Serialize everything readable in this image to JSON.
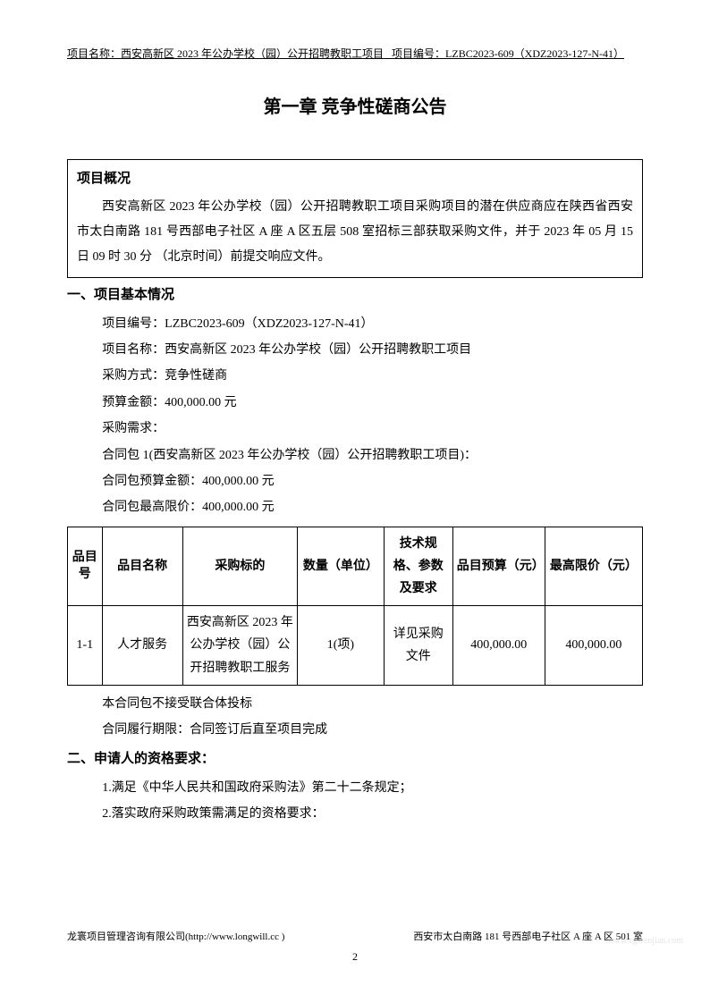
{
  "header": {
    "project_name_label": "项目名称：",
    "project_name": "西安高新区 2023 年公办学校（园）公开招聘教职工项目",
    "project_code_label": "项目编号：",
    "project_code": "LZBC2023-609（XDZ2023-127-N-41）"
  },
  "chapter_title": "第一章 竞争性磋商公告",
  "overview": {
    "title": "项目概况",
    "body": "西安高新区 2023 年公办学校（园）公开招聘教职工项目采购项目的潜在供应商应在陕西省西安市太白南路 181 号西部电子社区 A 座 A 区五层 508 室招标三部获取采购文件，并于 2023 年 05 月 15 日 09 时 30 分 （北京时间）前提交响应文件。"
  },
  "section1": {
    "title": "一、项目基本情况",
    "project_code_line": "项目编号：LZBC2023-609（XDZ2023-127-N-41）",
    "project_name_line": "项目名称：西安高新区 2023 年公办学校（园）公开招聘教职工项目",
    "method_line": "采购方式：竞争性磋商",
    "budget_line": "预算金额：400,000.00 元",
    "demand_line": "采购需求：",
    "package_line": "合同包 1(西安高新区 2023 年公办学校（园）公开招聘教职工项目)：",
    "package_budget_line": "合同包预算金额：400,000.00 元",
    "package_max_line": "合同包最高限价：400,000.00 元",
    "no_consortium": "本合同包不接受联合体投标",
    "duration": "合同履行期限：合同签订后直至项目完成"
  },
  "table": {
    "headers": {
      "num": "品目号",
      "name": "品目名称",
      "target": "采购标的",
      "qty": "数量（单位）",
      "tech": "技术规格、参数及要求",
      "budget": "品目预算（元）",
      "max": "最高限价（元）"
    },
    "row": {
      "num": "1-1",
      "name": "人才服务",
      "target": "西安高新区 2023 年公办学校（园）公开招聘教职工服务",
      "qty": "1(项)",
      "tech": "详见采购文件",
      "budget": "400,000.00",
      "max": "400,000.00"
    }
  },
  "section2": {
    "title": "二、申请人的资格要求：",
    "req1": "1.满足《中华人民共和国政府采购法》第二十二条规定；",
    "req2": "2.落实政府采购政策需满足的资格要求："
  },
  "footer": {
    "left": "龙寰项目管理咨询有限公司(http://www.longwill.cc )",
    "right": "西安市太白南路 181 号西部电子社区 A 座 A 区 501 室",
    "page": "2"
  },
  "watermark": "www.cgwenjian.com"
}
